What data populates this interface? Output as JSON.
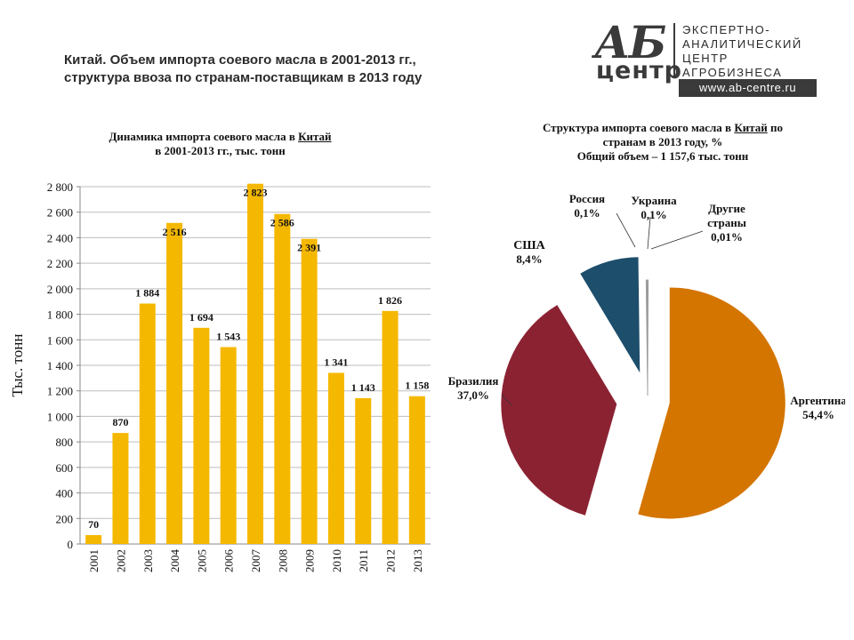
{
  "header": {
    "title_line1": "Китай. Объем импорта соевого масла в 2001-2013 гг.,",
    "title_line2": "структура ввоза по странам-поставщикам в 2013 году"
  },
  "logo": {
    "ab": "АБ",
    "centr": "центр",
    "text_lines": [
      "ЭКСПЕРТНО-",
      "АНАЛИТИЧЕСКИЙ",
      "ЦЕНТР",
      "АГРОБИЗНЕСА"
    ],
    "url": "www.ab-centre.ru"
  },
  "colors": {
    "bar": "#f5b800",
    "argentina": "#d47500",
    "brazil": "#8b2232",
    "usa": "#1d4e6b",
    "other": "#e8e8e8"
  },
  "chart_data": [
    {
      "type": "bar",
      "title_line1_prefix": "Динамика импорта соевого масла в ",
      "title_line1_link": "Китай",
      "title_line2": "в 2001-2013 гг., тыс. тонн",
      "ylabel": "Тыс. тонн",
      "xlabel": "",
      "ylim": [
        0,
        2800
      ],
      "yticks": [
        0,
        200,
        400,
        600,
        800,
        1000,
        1200,
        1400,
        1600,
        1800,
        2000,
        2200,
        2400,
        2600,
        2800
      ],
      "ytick_labels": [
        "0",
        "200",
        "400",
        "600",
        "800",
        "1 000",
        "1 200",
        "1 400",
        "1 600",
        "1 800",
        "2 000",
        "2 200",
        "2 400",
        "2 600",
        "2 800"
      ],
      "grid": true,
      "categories": [
        "2001",
        "2002",
        "2003",
        "2004",
        "2005",
        "2006",
        "2007",
        "2008",
        "2009",
        "2010",
        "2011",
        "2012",
        "2013"
      ],
      "values": [
        70,
        870,
        1884,
        2516,
        1694,
        1543,
        2823,
        2586,
        2391,
        1341,
        1143,
        1826,
        1158
      ],
      "value_labels": [
        "70",
        "870",
        "1 884",
        "2 516",
        "1 694",
        "1 543",
        "2 823",
        "2 586",
        "2 391",
        "1 341",
        "1 143",
        "1 826",
        "1 158"
      ]
    },
    {
      "type": "pie",
      "title_line1_prefix": "Структура импорта соевого масла в ",
      "title_line1_link": "Китай",
      "title_line1_suffix": " по",
      "title_line2": "странам в 2013 году, %",
      "title_line3": "Общий объем – 1 157,6 тыс. тонн",
      "slices": [
        {
          "name": "Аргентина",
          "value": 54.4,
          "label": "54,4%"
        },
        {
          "name": "Бразилия",
          "value": 37.0,
          "label": "37,0%"
        },
        {
          "name": "США",
          "value": 8.4,
          "label": "8,4%"
        },
        {
          "name": "Россия",
          "value": 0.1,
          "label": "0,1%"
        },
        {
          "name": "Украина",
          "value": 0.1,
          "label": "0,1%"
        },
        {
          "name_line1": "Другие",
          "name_line2": "страны",
          "value": 0.01,
          "label": "0,01%"
        }
      ]
    }
  ]
}
